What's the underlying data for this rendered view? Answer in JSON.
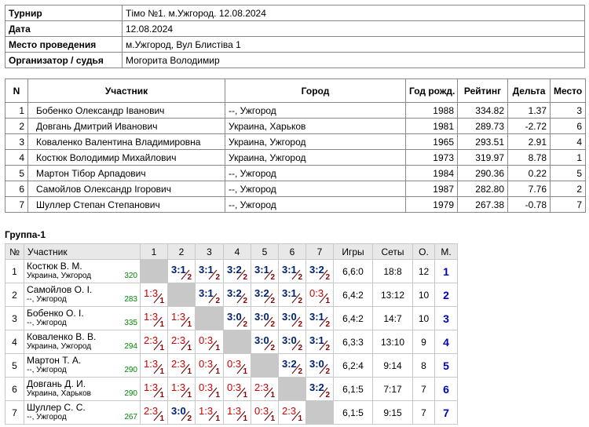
{
  "info": {
    "rows": [
      [
        "Турнир",
        "Тімо №1. м.Ужгород. 12.08.2024"
      ],
      [
        "Дата",
        "12.08.2024"
      ],
      [
        "Место проведения",
        "м.Ужгород, Вул Блистіва 1"
      ],
      [
        "Организатор / судья",
        "Могорита Володимир"
      ]
    ]
  },
  "participants": {
    "header": [
      "N",
      "Участник",
      "Город",
      "Год рожд.",
      "Рейтинг",
      "Дельта",
      "Место"
    ],
    "rows": [
      [
        "1",
        "Бобенко Олександр Іванович",
        "--, Ужгород",
        "1988",
        "334.82",
        "1.37",
        "3"
      ],
      [
        "2",
        "Довгань Дмитрий Иванович",
        "Украина, Харьков",
        "1981",
        "289.73",
        "-2.72",
        "6"
      ],
      [
        "3",
        "Коваленко Валентина Владимировна",
        "Украина, Ужгород",
        "1965",
        "293.51",
        "2.91",
        "4"
      ],
      [
        "4",
        "Костюк Володимир Михайлович",
        "Украина, Ужгород",
        "1973",
        "319.97",
        "8.78",
        "1"
      ],
      [
        "5",
        "Мартон Тібор Арпадович",
        "--, Ужгород",
        "1984",
        "290.36",
        "0.22",
        "5"
      ],
      [
        "6",
        "Самойлов Олександр Ігорович",
        "--, Ужгород",
        "1987",
        "282.80",
        "7.76",
        "2"
      ],
      [
        "7",
        "Шуллер Степан Степанович",
        "--, Ужгород",
        "1979",
        "267.38",
        "-0.78",
        "7"
      ]
    ]
  },
  "group": {
    "title": "Группа-1",
    "header": [
      "№",
      "Участник",
      "1",
      "2",
      "3",
      "4",
      "5",
      "6",
      "7",
      "Игры",
      "Сеты",
      "О.",
      "М."
    ],
    "rows": [
      {
        "n": "1",
        "name": "Костюк В. М.",
        "city": "Украина, Ужгород",
        "rating": "320",
        "games": [
          null,
          {
            "score": "3:1",
            "points": "2"
          },
          {
            "score": "3:1",
            "points": "2"
          },
          {
            "score": "3:2",
            "points": "2"
          },
          {
            "score": "3:1",
            "points": "2"
          },
          {
            "score": "3:1",
            "points": "2"
          },
          {
            "score": "3:2",
            "points": "2"
          }
        ],
        "igry": "6,6:0",
        "sety": "18:8",
        "o": "12",
        "m": "1"
      },
      {
        "n": "2",
        "name": "Самойлов О. І.",
        "city": "--, Ужгород",
        "rating": "283",
        "games": [
          {
            "score": "1:3",
            "points": "1"
          },
          null,
          {
            "score": "3:1",
            "points": "2"
          },
          {
            "score": "3:2",
            "points": "2"
          },
          {
            "score": "3:2",
            "points": "2"
          },
          {
            "score": "3:1",
            "points": "2"
          },
          {
            "score": "0:3",
            "points": "1"
          }
        ],
        "igry": "6,4:2",
        "sety": "13:12",
        "o": "10",
        "m": "2"
      },
      {
        "n": "3",
        "name": "Бобенко О. І.",
        "city": "--, Ужгород",
        "rating": "335",
        "games": [
          {
            "score": "1:3",
            "points": "1"
          },
          {
            "score": "1:3",
            "points": "1"
          },
          null,
          {
            "score": "3:0",
            "points": "2"
          },
          {
            "score": "3:0",
            "points": "2"
          },
          {
            "score": "3:0",
            "points": "2"
          },
          {
            "score": "3:1",
            "points": "2"
          }
        ],
        "igry": "6,4:2",
        "sety": "14:7",
        "o": "10",
        "m": "3"
      },
      {
        "n": "4",
        "name": "Коваленко В. В.",
        "city": "Украина, Ужгород",
        "rating": "294",
        "games": [
          {
            "score": "2:3",
            "points": "1"
          },
          {
            "score": "2:3",
            "points": "1"
          },
          {
            "score": "0:3",
            "points": "1"
          },
          null,
          {
            "score": "3:0",
            "points": "2"
          },
          {
            "score": "3:0",
            "points": "2"
          },
          {
            "score": "3:1",
            "points": "2"
          }
        ],
        "igry": "6,3:3",
        "sety": "13:10",
        "o": "9",
        "m": "4"
      },
      {
        "n": "5",
        "name": "Мартон Т. А.",
        "city": "--, Ужгород",
        "rating": "290",
        "games": [
          {
            "score": "1:3",
            "points": "1"
          },
          {
            "score": "2:3",
            "points": "1"
          },
          {
            "score": "0:3",
            "points": "1"
          },
          {
            "score": "0:3",
            "points": "1"
          },
          null,
          {
            "score": "3:2",
            "points": "2"
          },
          {
            "score": "3:0",
            "points": "2"
          }
        ],
        "igry": "6,2:4",
        "sety": "9:14",
        "o": "8",
        "m": "5"
      },
      {
        "n": "6",
        "name": "Довгань Д. И.",
        "city": "Украина, Харьков",
        "rating": "290",
        "games": [
          {
            "score": "1:3",
            "points": "1"
          },
          {
            "score": "1:3",
            "points": "1"
          },
          {
            "score": "0:3",
            "points": "1"
          },
          {
            "score": "0:3",
            "points": "1"
          },
          {
            "score": "2:3",
            "points": "1"
          },
          null,
          {
            "score": "3:2",
            "points": "2"
          }
        ],
        "igry": "6,1:5",
        "sety": "7:17",
        "o": "7",
        "m": "6"
      },
      {
        "n": "7",
        "name": "Шуллер С. С.",
        "city": "--, Ужгород",
        "rating": "267",
        "games": [
          {
            "score": "2:3",
            "points": "1"
          },
          {
            "score": "3:0",
            "points": "2"
          },
          {
            "score": "1:3",
            "points": "1"
          },
          {
            "score": "1:3",
            "points": "1"
          },
          {
            "score": "0:3",
            "points": "1"
          },
          {
            "score": "2:3",
            "points": "1"
          },
          null
        ],
        "igry": "6,1:5",
        "sety": "9:15",
        "o": "7",
        "m": "7"
      }
    ]
  }
}
